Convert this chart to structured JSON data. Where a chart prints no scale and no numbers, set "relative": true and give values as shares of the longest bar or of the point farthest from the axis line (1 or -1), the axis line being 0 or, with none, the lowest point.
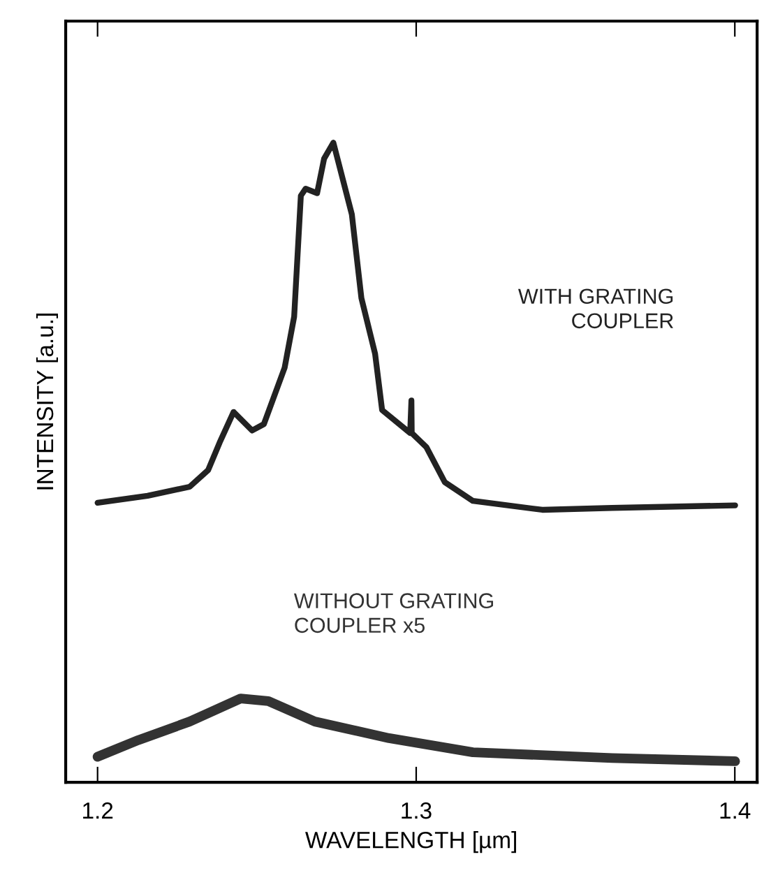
{
  "chart_data": {
    "type": "line",
    "xlabel": "WAVELENGTH [µm]",
    "ylabel": "INTENSITY [a.u.]",
    "relative": true,
    "xlim": [
      1.19,
      1.407
    ],
    "xticks": [
      1.2,
      1.3,
      1.4
    ],
    "grid": false,
    "legend": false,
    "series": [
      {
        "name": "WITH GRATING\nCOUPLER",
        "color": "#222222",
        "x": [
          1.2,
          1.2157,
          1.2289,
          1.2347,
          1.2383,
          1.2427,
          1.2485,
          1.2522,
          1.2587,
          1.2617,
          1.2638,
          1.2653,
          1.2689,
          1.2711,
          1.274,
          1.2798,
          1.2828,
          1.2871,
          1.2893,
          1.2981,
          1.2985,
          1.2986,
          1.3032,
          1.309,
          1.3178,
          1.3396,
          1.3615,
          1.4001
        ],
        "values": [
          0.437,
          0.448,
          0.462,
          0.488,
          0.531,
          0.579,
          0.55,
          0.56,
          0.648,
          0.728,
          0.917,
          0.928,
          0.921,
          0.975,
          1.0,
          0.888,
          0.757,
          0.67,
          0.582,
          0.546,
          0.597,
          0.546,
          0.524,
          0.469,
          0.44,
          0.426,
          0.429,
          0.433
        ]
      },
      {
        "name": "WITHOUT GRATING\nCOUPLER x5",
        "color": "#333333",
        "x": [
          1.2,
          1.2128,
          1.2289,
          1.2449,
          1.2536,
          1.2682,
          1.2915,
          1.3178,
          1.3615,
          1.4001
        ],
        "values": [
          0.04,
          0.066,
          0.095,
          0.131,
          0.127,
          0.095,
          0.069,
          0.047,
          0.038,
          0.033
        ]
      }
    ]
  }
}
